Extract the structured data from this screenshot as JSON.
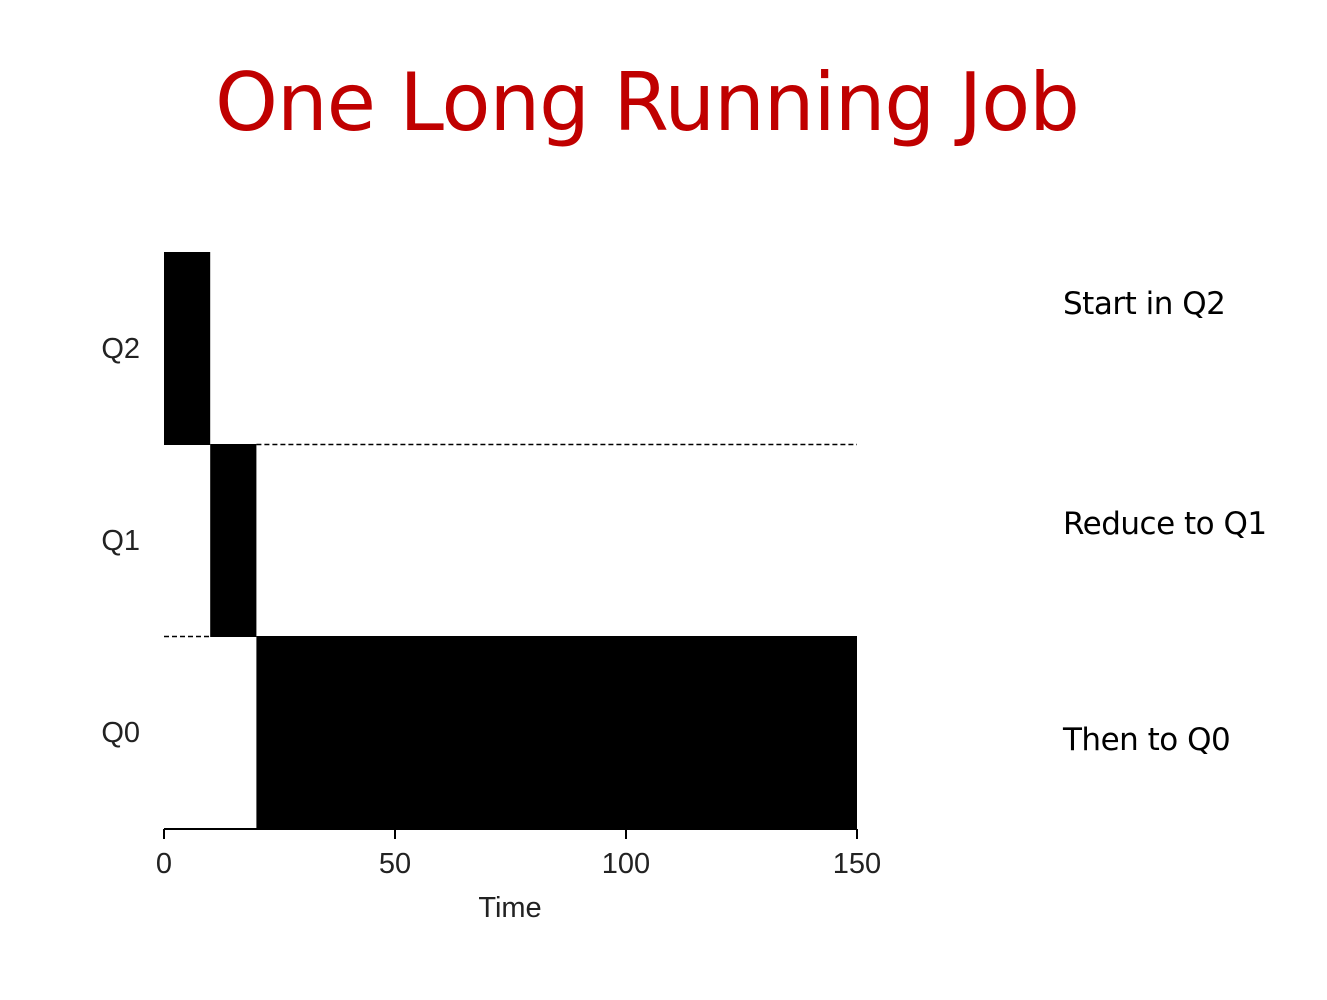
{
  "slide": {
    "title": "One Long Running Job",
    "annotations": [
      "Start in Q2",
      "Reduce to Q1",
      "Then to Q0"
    ]
  },
  "chart_data": {
    "type": "gantt",
    "xlabel": "Time",
    "xlim": [
      0,
      150
    ],
    "xticks": [
      0,
      50,
      100,
      150
    ],
    "queues": [
      "Q2",
      "Q1",
      "Q0"
    ],
    "segments": [
      {
        "queue": "Q2",
        "start": 0,
        "end": 10
      },
      {
        "queue": "Q1",
        "start": 10,
        "end": 20
      },
      {
        "queue": "Q0",
        "start": 20,
        "end": 150
      }
    ],
    "boundaries": [
      {
        "between": [
          "Q2",
          "Q1"
        ],
        "dashed_from": 20,
        "dashed_to": 150
      },
      {
        "between": [
          "Q1",
          "Q0"
        ],
        "dashed_from": 0,
        "dashed_to": 10
      }
    ],
    "bar_color": "#000000",
    "grid": false,
    "legend": false
  }
}
